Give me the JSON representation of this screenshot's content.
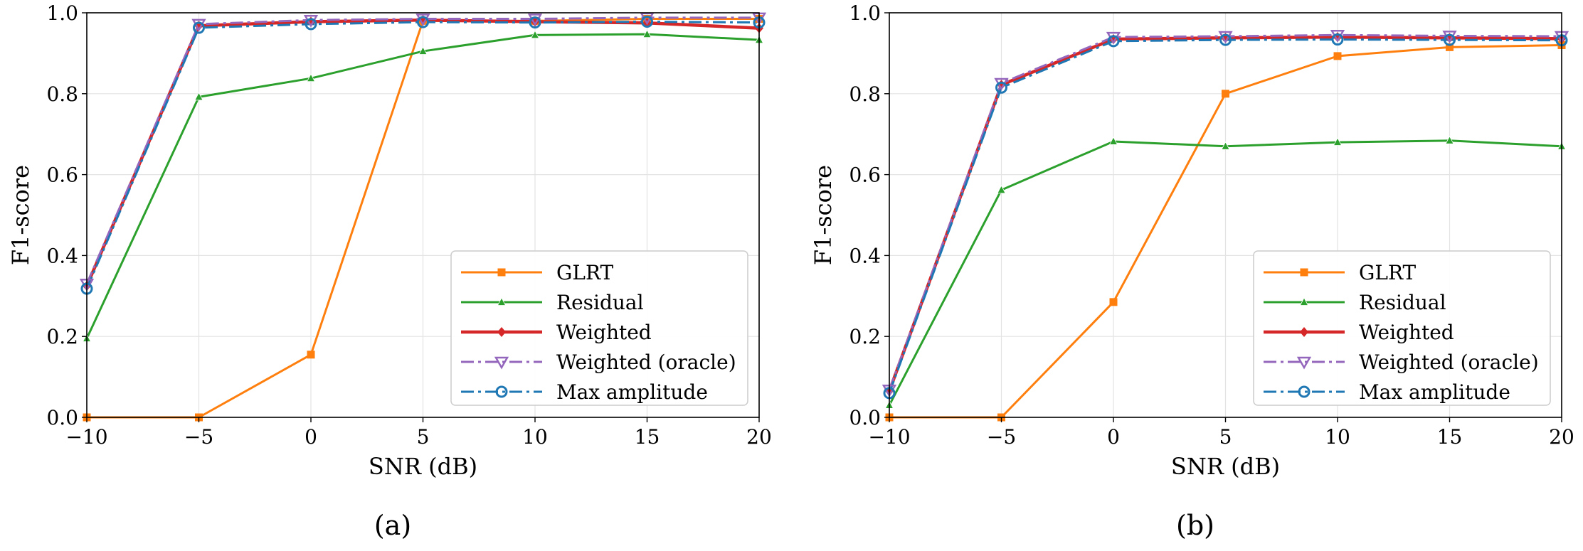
{
  "chart_data": [
    {
      "type": "line",
      "panel_label": "(a)",
      "xlabel": "SNR (dB)",
      "ylabel": "F1-score",
      "xlim": [
        -10,
        20
      ],
      "ylim": [
        0,
        1.0
      ],
      "xticks": [
        "−10",
        "−5",
        "0",
        "5",
        "10",
        "15",
        "20"
      ],
      "yticks": [
        "0.0",
        "0.2",
        "0.4",
        "0.6",
        "0.8",
        "1.0"
      ],
      "grid": true,
      "legend_position": "lower-right",
      "x": [
        -10,
        -5,
        0,
        5,
        10,
        15,
        20
      ],
      "series": [
        {
          "name": "GLRT",
          "color": "#ff7f0e",
          "marker": "square",
          "dash": "solid",
          "values": [
            0.0,
            0.0,
            0.155,
            0.98,
            0.98,
            0.985,
            0.985
          ]
        },
        {
          "name": "Residual",
          "color": "#2ca02c",
          "marker": "triangle-up",
          "dash": "solid",
          "values": [
            0.195,
            0.792,
            0.838,
            0.905,
            0.945,
            0.947,
            0.933
          ]
        },
        {
          "name": "Weighted",
          "color": "#d62728",
          "marker": "diamond",
          "dash": "solid",
          "values": [
            0.325,
            0.968,
            0.978,
            0.982,
            0.978,
            0.975,
            0.962
          ]
        },
        {
          "name": "Weighted (oracle)",
          "color": "#9467bd",
          "marker": "triangle-down",
          "dash": "dashdot",
          "values": [
            0.33,
            0.972,
            0.982,
            0.985,
            0.985,
            0.988,
            0.988
          ]
        },
        {
          "name": "Max amplitude",
          "color": "#1f77b4",
          "marker": "circle",
          "dash": "dashdot",
          "values": [
            0.318,
            0.963,
            0.972,
            0.977,
            0.976,
            0.978,
            0.976
          ]
        }
      ]
    },
    {
      "type": "line",
      "panel_label": "(b)",
      "xlabel": "SNR (dB)",
      "ylabel": "F1-score",
      "xlim": [
        -10,
        20
      ],
      "ylim": [
        0,
        1.0
      ],
      "xticks": [
        "−10",
        "−5",
        "0",
        "5",
        "10",
        "15",
        "20"
      ],
      "yticks": [
        "0.0",
        "0.2",
        "0.4",
        "0.6",
        "0.8",
        "1.0"
      ],
      "grid": true,
      "legend_position": "lower-right",
      "x": [
        -10,
        -5,
        0,
        5,
        10,
        15,
        20
      ],
      "series": [
        {
          "name": "GLRT",
          "color": "#ff7f0e",
          "marker": "square",
          "dash": "solid",
          "values": [
            0.0,
            0.0,
            0.285,
            0.8,
            0.893,
            0.915,
            0.92
          ]
        },
        {
          "name": "Residual",
          "color": "#2ca02c",
          "marker": "triangle-up",
          "dash": "solid",
          "values": [
            0.03,
            0.562,
            0.682,
            0.67,
            0.68,
            0.684,
            0.67
          ]
        },
        {
          "name": "Weighted",
          "color": "#d62728",
          "marker": "diamond",
          "dash": "solid",
          "values": [
            0.065,
            0.822,
            0.935,
            0.938,
            0.94,
            0.938,
            0.936
          ]
        },
        {
          "name": "Weighted (oracle)",
          "color": "#9467bd",
          "marker": "triangle-down",
          "dash": "dashdot",
          "values": [
            0.068,
            0.826,
            0.94,
            0.942,
            0.945,
            0.943,
            0.942
          ]
        },
        {
          "name": "Max amplitude",
          "color": "#1f77b4",
          "marker": "circle",
          "dash": "dashdot",
          "values": [
            0.06,
            0.815,
            0.93,
            0.933,
            0.934,
            0.933,
            0.932
          ]
        }
      ]
    }
  ]
}
